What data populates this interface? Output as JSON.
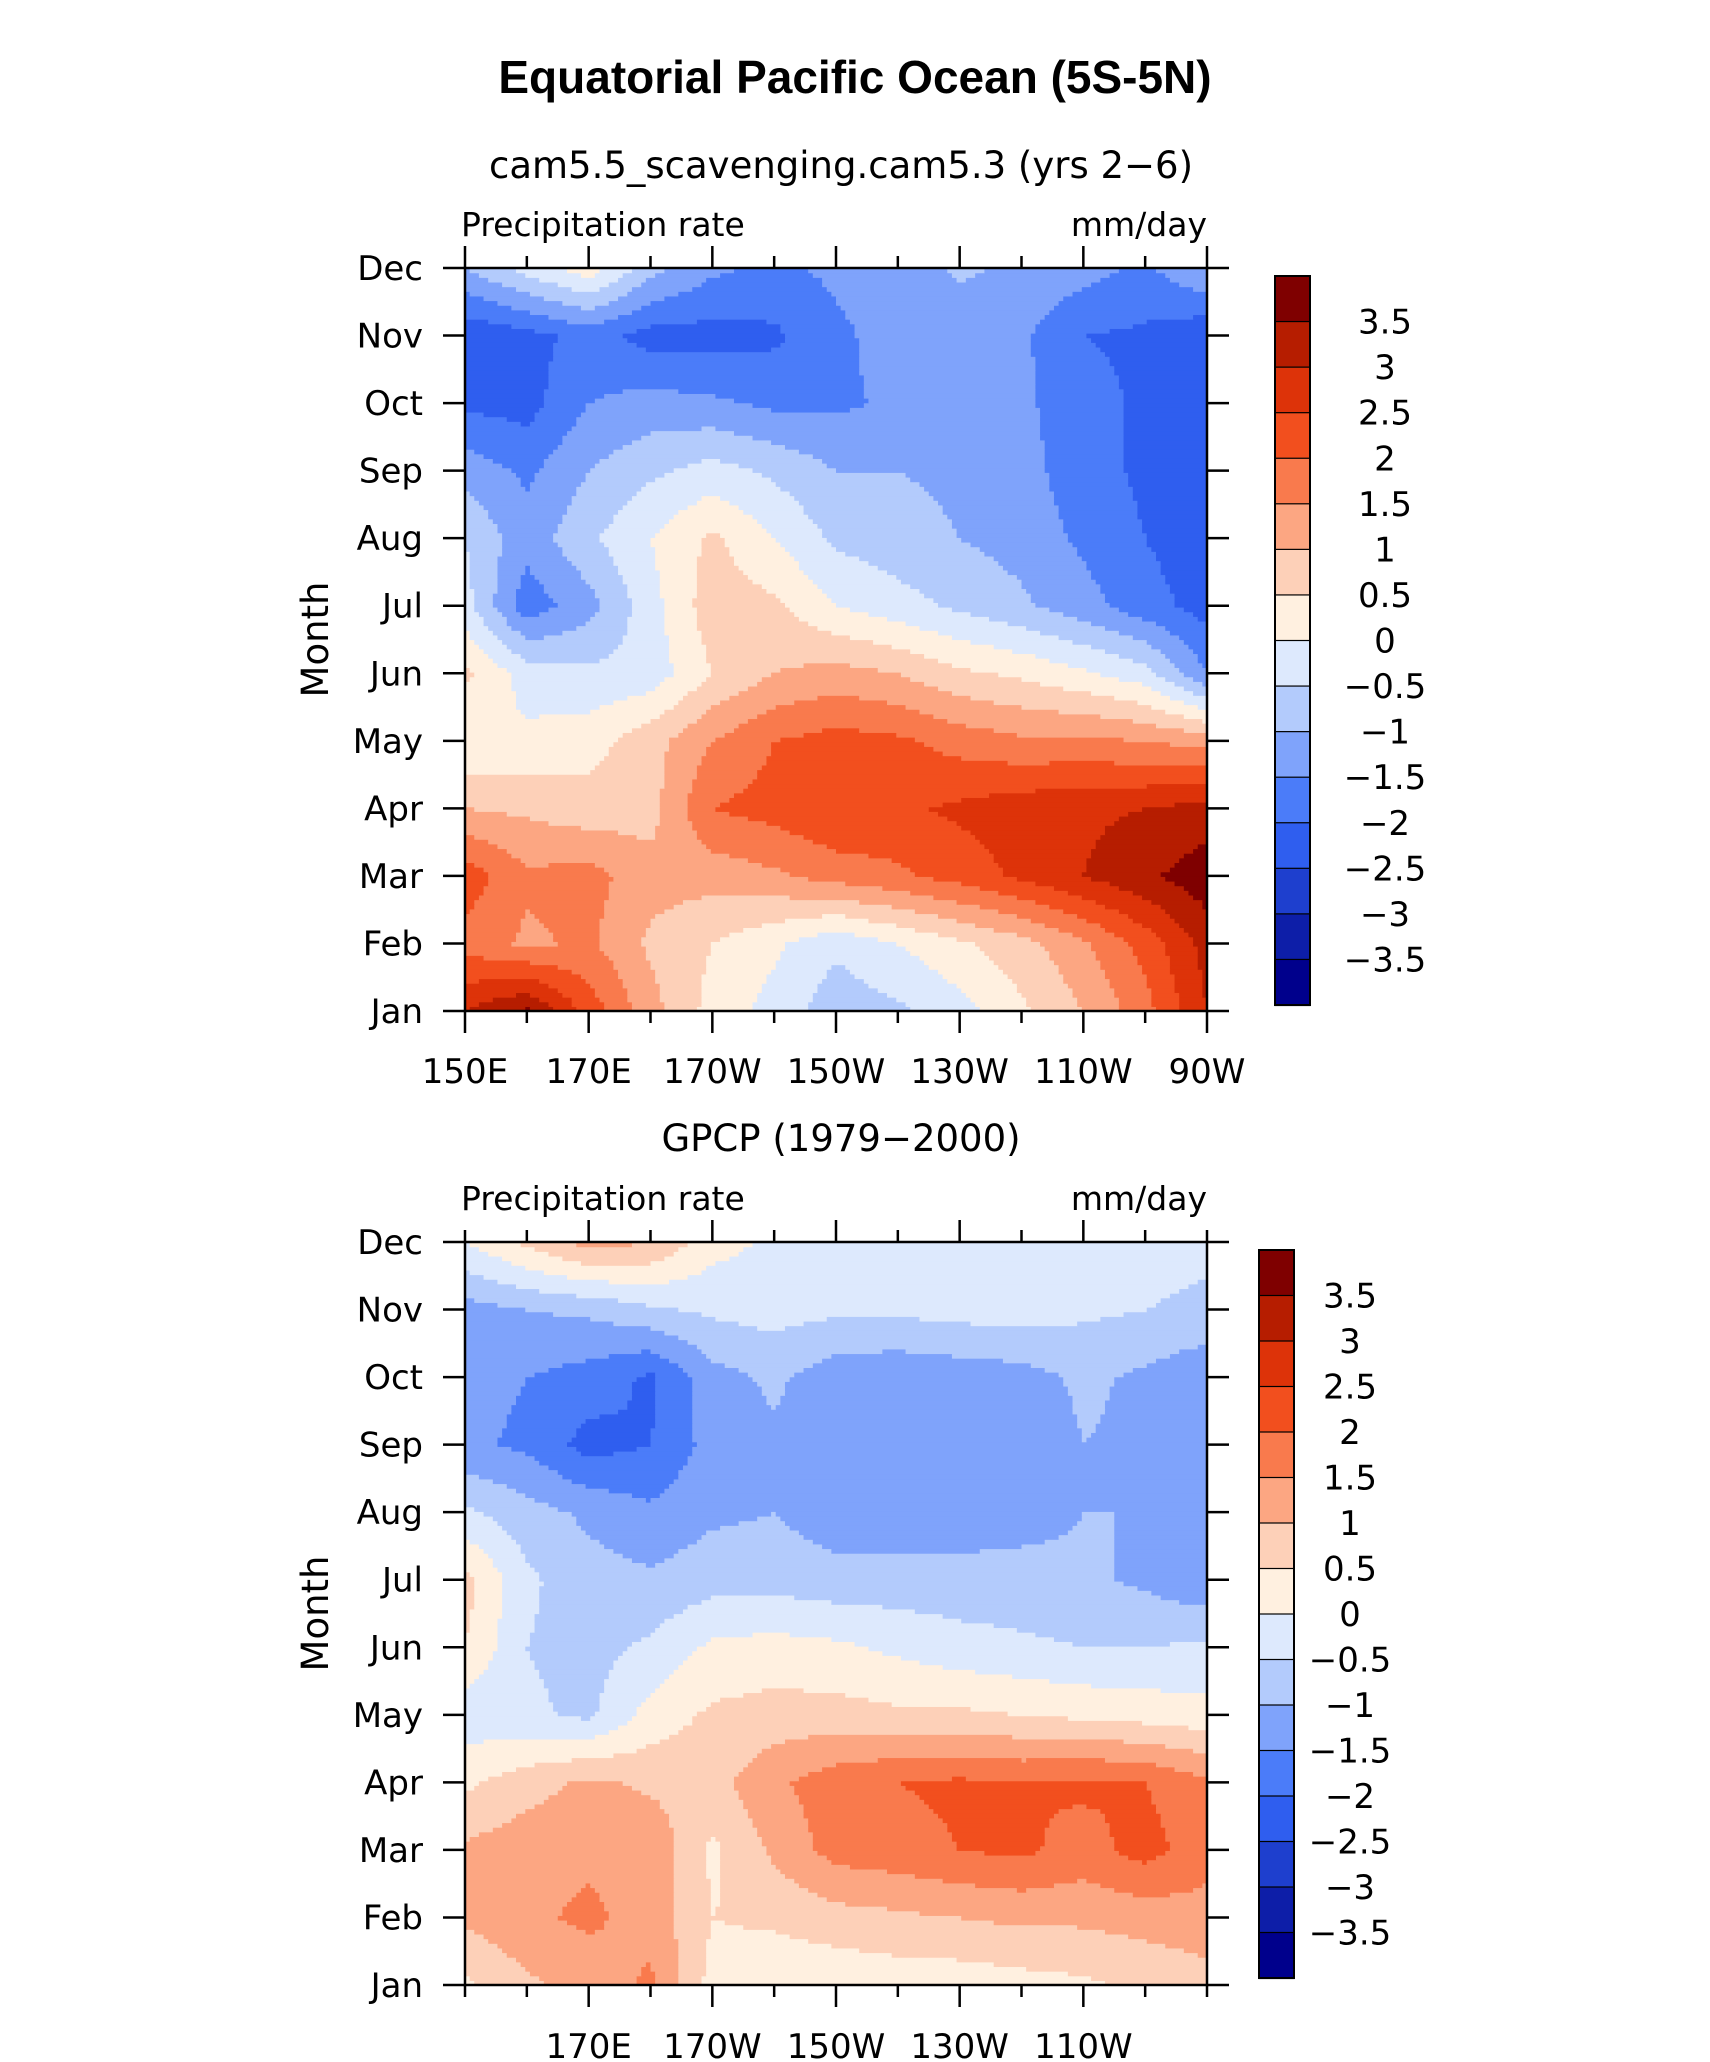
{
  "figure": {
    "title": "Equatorial Pacific Ocean (5S-5N)"
  },
  "colors": {
    "levels": [
      -3.5,
      -3,
      -2.5,
      -2,
      -1.5,
      -1,
      -0.5,
      0,
      0.5,
      1,
      1.5,
      2,
      2.5,
      3,
      3.5
    ],
    "palette": [
      "#00008c",
      "#0d1ea8",
      "#1e3fce",
      "#2f5eef",
      "#4b7cf9",
      "#7fa3fb",
      "#b3cbfc",
      "#dde9fd",
      "#fff0e0",
      "#fdd0b8",
      "#fca682",
      "#f97a4d",
      "#f24f1e",
      "#dd3309",
      "#b61d00",
      "#7f0000"
    ]
  },
  "chart_data": [
    {
      "type": "heatmap",
      "name": "model",
      "subtitle": "cam5.5_scavenging.cam5.3 (yrs 2−6)",
      "left_label": "Precipitation rate",
      "right_label": "mm/day",
      "ylabel": "Month",
      "xlabel": "",
      "x": [
        150,
        160,
        170,
        180,
        190,
        200,
        210,
        220,
        230,
        240,
        250,
        260,
        270
      ],
      "x_ticks": [
        150,
        170,
        190,
        210,
        230,
        250,
        270
      ],
      "x_tick_labels": [
        "150E",
        "170E",
        "170W",
        "150W",
        "130W",
        "110W",
        "90W"
      ],
      "xlim": [
        150,
        270
      ],
      "y_labels": [
        "Jan",
        "Feb",
        "Mar",
        "Apr",
        "May",
        "Jun",
        "Jul",
        "Aug",
        "Sep",
        "Oct",
        "Nov",
        "Dec"
      ],
      "colorbar_labels": [
        "3.5",
        "3",
        "2.5",
        "2",
        "1.5",
        "1",
        "0.5",
        "0",
        "−0.5",
        "−1",
        "−1.5",
        "−2",
        "−2.5",
        "−3",
        "−3.5"
      ],
      "z": [
        [
          3.0,
          3.6,
          2.3,
          1.2,
          0.3,
          -0.2,
          -0.8,
          -0.6,
          -0.2,
          0.4,
          1.0,
          1.8,
          3.0
        ],
        [
          1.8,
          1.4,
          1.6,
          0.9,
          0.5,
          0.1,
          -0.4,
          0.0,
          0.4,
          0.8,
          1.4,
          2.2,
          3.2
        ],
        [
          2.3,
          1.6,
          1.7,
          1.2,
          1.2,
          1.4,
          1.7,
          1.9,
          2.2,
          2.6,
          3.0,
          3.4,
          3.8
        ],
        [
          1.0,
          0.9,
          0.7,
          0.8,
          2.0,
          2.2,
          2.5,
          2.4,
          2.6,
          2.8,
          2.9,
          3.0,
          3.2
        ],
        [
          0.0,
          0.1,
          0.3,
          0.8,
          1.5,
          2.0,
          2.2,
          2.1,
          1.8,
          1.6,
          1.6,
          1.5,
          1.3
        ],
        [
          0.6,
          -0.2,
          -0.4,
          -0.3,
          0.5,
          1.0,
          1.2,
          1.0,
          0.6,
          0.4,
          0.1,
          -0.3,
          -1.5
        ],
        [
          -0.3,
          -1.8,
          -1.2,
          -0.2,
          0.8,
          0.6,
          0.0,
          -0.3,
          -0.6,
          -0.9,
          -1.3,
          -1.8,
          -2.2
        ],
        [
          -0.5,
          -1.3,
          -0.6,
          0.0,
          0.6,
          0.0,
          -0.6,
          -0.8,
          -1.0,
          -1.2,
          -1.6,
          -2.0,
          -2.3
        ],
        [
          -1.2,
          -1.6,
          -1.0,
          -0.6,
          -0.3,
          -0.6,
          -1.0,
          -1.0,
          -1.1,
          -1.3,
          -1.8,
          -2.1,
          -2.4
        ],
        [
          -2.1,
          -2.2,
          -1.5,
          -1.3,
          -1.4,
          -1.6,
          -1.6,
          -1.4,
          -1.3,
          -1.4,
          -1.8,
          -2.1,
          -2.5
        ],
        [
          -2.4,
          -2.2,
          -1.8,
          -2.2,
          -2.2,
          -2.1,
          -1.6,
          -1.3,
          -1.4,
          -1.4,
          -2.0,
          -2.1,
          -2.4
        ],
        [
          -1.0,
          -0.3,
          0.3,
          -0.8,
          -1.4,
          -1.6,
          -1.4,
          -1.3,
          -0.9,
          -1.1,
          -1.3,
          -1.6,
          -1.0
        ]
      ]
    },
    {
      "type": "heatmap",
      "name": "obs",
      "subtitle": "GPCP (1979−2000)",
      "left_label": "Precipitation rate",
      "right_label": "mm/day",
      "ylabel": "Month",
      "xlabel": "",
      "x": [
        150,
        160,
        170,
        180,
        190,
        200,
        210,
        220,
        230,
        240,
        250,
        260,
        270
      ],
      "x_ticks": [
        170,
        190,
        210,
        230,
        250
      ],
      "x_tick_labels": [
        "170E",
        "170W",
        "150W",
        "130W",
        "110W"
      ],
      "xlim": [
        150,
        270
      ],
      "y_labels": [
        "Jan",
        "Feb",
        "Mar",
        "Apr",
        "May",
        "Jun",
        "Jul",
        "Aug",
        "Sep",
        "Oct",
        "Nov",
        "Dec"
      ],
      "colorbar_labels": [
        "3.5",
        "3",
        "2.5",
        "2",
        "1.5",
        "1",
        "0.5",
        "0",
        "−0.5",
        "−1",
        "−1.5",
        "−2",
        "−2.5",
        "−3",
        "−3.5"
      ],
      "z": [
        [
          0.4,
          0.9,
          1.2,
          1.6,
          0.3,
          0.1,
          0.1,
          0.2,
          0.2,
          0.3,
          0.4,
          0.6,
          0.8
        ],
        [
          1.1,
          1.4,
          1.6,
          1.3,
          0.5,
          0.6,
          0.8,
          0.9,
          1.0,
          1.1,
          1.1,
          1.2,
          1.3
        ],
        [
          1.1,
          1.3,
          1.4,
          1.4,
          0.4,
          1.1,
          1.7,
          1.8,
          2.0,
          2.1,
          1.8,
          2.2,
          1.7
        ],
        [
          0.4,
          0.8,
          1.1,
          0.9,
          0.8,
          1.4,
          1.8,
          2.0,
          2.1,
          2.0,
          2.1,
          2.0,
          1.6
        ],
        [
          -0.3,
          -0.4,
          -0.6,
          0.2,
          0.6,
          0.7,
          0.7,
          0.6,
          0.6,
          0.5,
          0.4,
          0.3,
          0.2
        ],
        [
          0.5,
          -0.5,
          -0.7,
          -0.4,
          0.1,
          0.2,
          0.1,
          -0.1,
          -0.3,
          -0.4,
          -0.5,
          -0.5,
          -0.4
        ],
        [
          0.7,
          -0.4,
          -0.8,
          -0.9,
          -0.7,
          -0.7,
          -0.8,
          -0.8,
          -0.8,
          -0.8,
          -0.9,
          -1.1,
          -1.4
        ],
        [
          -0.4,
          -0.8,
          -1.1,
          -1.4,
          -1.1,
          -1.0,
          -1.3,
          -1.3,
          -1.3,
          -1.2,
          -1.0,
          -1.0,
          -1.1
        ],
        [
          -1.4,
          -1.6,
          -2.2,
          -2.0,
          -1.3,
          -1.1,
          -1.4,
          -1.5,
          -1.5,
          -1.4,
          -1.0,
          -1.1,
          -1.5
        ],
        [
          -1.3,
          -1.5,
          -1.7,
          -2.1,
          -1.2,
          -0.9,
          -1.3,
          -1.4,
          -1.3,
          -1.2,
          -0.9,
          -1.1,
          -1.4
        ],
        [
          -1.2,
          -1.0,
          -0.9,
          -0.6,
          -0.4,
          -0.3,
          -0.4,
          -0.4,
          -0.3,
          -0.3,
          -0.4,
          -0.5,
          -0.6
        ],
        [
          0.0,
          0.6,
          1.2,
          1.0,
          0.2,
          -0.1,
          -0.3,
          -0.3,
          -0.3,
          -0.3,
          -0.3,
          -0.3,
          -0.4
        ]
      ]
    }
  ]
}
